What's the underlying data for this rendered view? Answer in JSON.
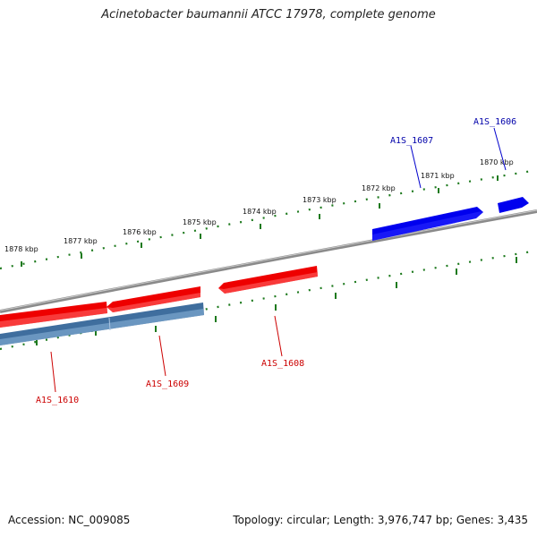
{
  "title": "Acinetobacter baumannii ATCC 17978, complete genome",
  "footer": {
    "accession": "Accession: NC_009085",
    "summary": "Topology: circular; Length: 3,976,747 bp; Genes: 3,435"
  },
  "colors": {
    "backbone": "#888888",
    "ticks": "#1e7a1e",
    "forward_gene": "#0000ee",
    "reverse_gene": "#ee0000",
    "reverse_cds": "#4a7fb5",
    "forward_label": "#0000aa",
    "reverse_label": "#cc0000"
  },
  "ticks": [
    {
      "kbp": 1870,
      "label": "1870 kbp"
    },
    {
      "kbp": 1871,
      "label": "1871 kbp"
    },
    {
      "kbp": 1872,
      "label": "1872 kbp"
    },
    {
      "kbp": 1873,
      "label": "1873 kbp"
    },
    {
      "kbp": 1874,
      "label": "1874 kbp"
    },
    {
      "kbp": 1875,
      "label": "1875 kbp"
    },
    {
      "kbp": 1876,
      "label": "1876 kbp"
    },
    {
      "kbp": 1877,
      "label": "1877 kbp"
    },
    {
      "kbp": 1878,
      "label": "1878 kbp"
    }
  ],
  "genes": [
    {
      "name": "A1S_1606",
      "strand": "forward"
    },
    {
      "name": "A1S_1607",
      "strand": "forward"
    },
    {
      "name": "A1S_1608",
      "strand": "reverse"
    },
    {
      "name": "A1S_1609",
      "strand": "reverse"
    },
    {
      "name": "A1S_1610",
      "strand": "reverse"
    }
  ]
}
